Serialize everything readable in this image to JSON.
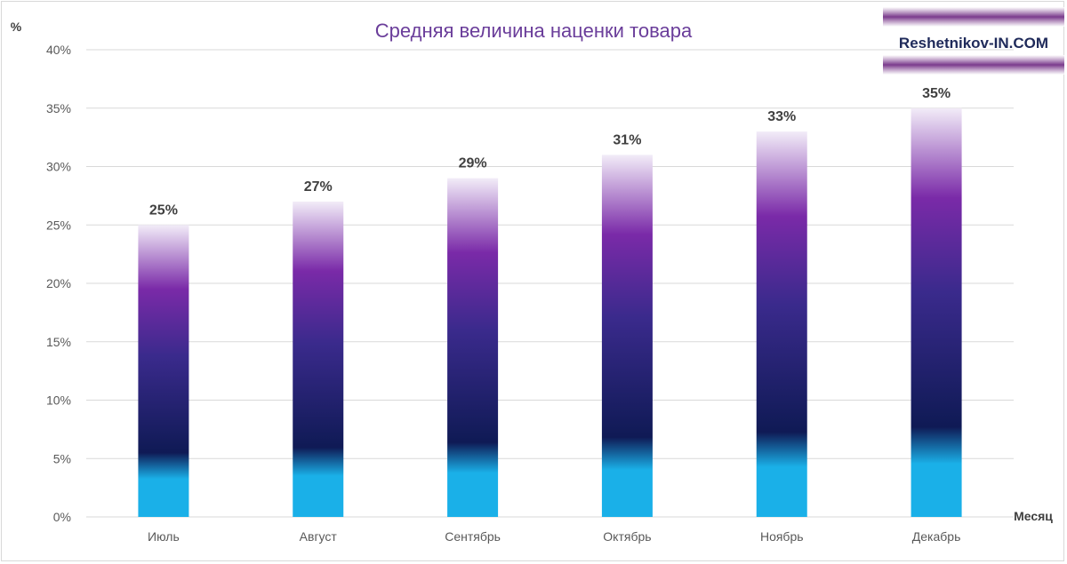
{
  "chart_data": {
    "type": "bar",
    "title": "Средняя величина наценки товара",
    "ylabel": "%",
    "xlabel": "Месяц",
    "categories": [
      "Июль",
      "Август",
      "Сентябрь",
      "Октябрь",
      "Ноябрь",
      "Декабрь"
    ],
    "values": [
      25,
      27,
      29,
      31,
      33,
      35
    ],
    "value_labels": [
      "25%",
      "27%",
      "29%",
      "31%",
      "33%",
      "35%"
    ],
    "ylim": [
      0,
      40
    ],
    "yticks": [
      0,
      5,
      10,
      15,
      20,
      25,
      30,
      35,
      40
    ],
    "ytick_labels": [
      "0%",
      "5%",
      "10%",
      "15%",
      "20%",
      "25%",
      "30%",
      "35%",
      "40%"
    ],
    "grid": true,
    "colors": {
      "title": "#6a3d9a",
      "bar_bottom": "#1ab0e8",
      "bar_dark": "#0f1a55",
      "bar_mid": "#3a2a8c",
      "bar_purple": "#7a2aa8",
      "bar_top": "#f2ecf8"
    }
  },
  "watermark": {
    "text": "Reshetnikov-IN.COM",
    "band_color": "#7a3a8c"
  }
}
